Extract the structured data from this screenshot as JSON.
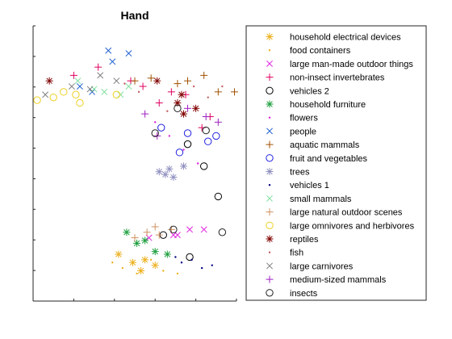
{
  "chart_data": {
    "type": "scatter",
    "title": "Hand",
    "xlabel": "",
    "ylabel": "",
    "xlim": [
      0,
      10
    ],
    "ylim": [
      0,
      10
    ],
    "legend_position": "right",
    "series": [
      {
        "name": "household electrical devices",
        "marker": "asterisk",
        "color": "#EDB120",
        "x": [
          4.2,
          4.9,
          5.5,
          5.3,
          6.0
        ],
        "y": [
          1.7,
          1.4,
          1.5,
          1.1,
          1.3
        ]
      },
      {
        "name": "food containers",
        "marker": "dot",
        "color": "#EDB120",
        "x": [
          3.9,
          4.4,
          5.1,
          5.8,
          6.4,
          7.1
        ],
        "y": [
          1.4,
          1.2,
          1.0,
          1.5,
          1.1,
          1.0
        ]
      },
      {
        "name": "large man-made outdoor things",
        "marker": "x",
        "color": "#E020E0",
        "x": [
          5.7,
          6.9,
          7.7,
          8.4,
          7.1
        ],
        "y": [
          2.3,
          2.4,
          2.6,
          2.6,
          2.4
        ]
      },
      {
        "name": "non-insect invertebrates",
        "marker": "plus",
        "color": "#E00060",
        "x": [
          2.0,
          3.2,
          4.8,
          5.4,
          6.2,
          6.8,
          7.5,
          8.3,
          8.7
        ],
        "y": [
          8.2,
          8.5,
          8.0,
          7.8,
          7.2,
          7.6,
          7.5,
          6.3,
          6.7
        ]
      },
      {
        "name": "vehicles 2",
        "marker": "circle",
        "color": "#000000",
        "x": [
          7.6,
          8.4,
          9.1,
          7.7,
          6.4
        ],
        "y": [
          5.7,
          4.9,
          3.8,
          1.6,
          2.4
        ]
      },
      {
        "name": "household furniture",
        "marker": "asterisk",
        "color": "#20A040",
        "x": [
          4.6,
          5.1,
          5.5,
          6.0,
          6.6
        ],
        "y": [
          2.5,
          2.1,
          2.2,
          1.8,
          1.7
        ]
      },
      {
        "name": "flowers",
        "marker": "dot",
        "color": "#E020E0",
        "x": [
          6.0,
          6.7,
          7.4,
          8.1,
          6.9
        ],
        "y": [
          6.5,
          6.0,
          5.5,
          5.0,
          4.5
        ]
      },
      {
        "name": "people",
        "marker": "x",
        "color": "#2060D0",
        "x": [
          2.9,
          3.7,
          3.9,
          4.7,
          2.3
        ],
        "y": [
          7.6,
          9.1,
          8.7,
          9.0,
          7.8
        ]
      },
      {
        "name": "aquatic mammals",
        "marker": "plus",
        "color": "#A05000",
        "x": [
          5.0,
          5.8,
          7.1,
          7.6,
          8.4,
          9.1,
          9.9
        ],
        "y": [
          8.0,
          8.1,
          7.9,
          8.0,
          8.2,
          7.6,
          7.6
        ]
      },
      {
        "name": "fruit and vegetables",
        "marker": "circle",
        "color": "#2020E0",
        "x": [
          6.3,
          7.6,
          8.6,
          9.0,
          7.2
        ],
        "y": [
          6.3,
          6.1,
          5.8,
          6.0,
          5.4
        ]
      },
      {
        "name": "trees",
        "marker": "asterisk",
        "color": "#9090C0",
        "x": [
          6.2,
          6.5,
          6.7,
          6.9,
          7.4
        ],
        "y": [
          4.7,
          4.6,
          4.8,
          4.5,
          4.9
        ]
      },
      {
        "name": "vehicles 1",
        "marker": "dot",
        "color": "#000080",
        "x": [
          7.0,
          7.3,
          7.8,
          8.3,
          8.8
        ],
        "y": [
          1.6,
          1.4,
          1.5,
          1.2,
          1.3
        ]
      },
      {
        "name": "small mammals",
        "marker": "x",
        "color": "#80E0A0",
        "x": [
          2.2,
          3.0,
          3.5,
          4.3,
          4.7
        ],
        "y": [
          8.0,
          7.7,
          7.6,
          7.5,
          7.8
        ]
      },
      {
        "name": "large natural outdoor scenes",
        "marker": "plus",
        "color": "#D09060",
        "x": [
          5.0,
          5.6,
          6.0,
          6.2,
          6.8
        ],
        "y": [
          2.3,
          2.5,
          2.7,
          2.4,
          2.6
        ]
      },
      {
        "name": "large omnivores and herbivores",
        "marker": "circle",
        "color": "#EDD020",
        "x": [
          0.2,
          1.0,
          1.5,
          2.1,
          4.1,
          2.3
        ],
        "y": [
          7.3,
          7.4,
          7.6,
          7.5,
          7.5,
          7.2
        ]
      },
      {
        "name": "reptiles",
        "marker": "asterisk",
        "color": "#800000",
        "x": [
          0.8,
          6.1,
          7.1,
          7.4,
          8.0,
          7.3
        ],
        "y": [
          8.0,
          8.0,
          7.2,
          6.8,
          7.0,
          7.5
        ]
      },
      {
        "name": "fish",
        "marker": "dot",
        "color": "#C06060",
        "x": [
          4.5,
          5.2,
          6.6,
          7.9,
          8.6,
          9.3
        ],
        "y": [
          7.9,
          7.6,
          6.9,
          7.8,
          7.4,
          7.8
        ]
      },
      {
        "name": "large carnivores",
        "marker": "x",
        "color": "#808080",
        "x": [
          0.6,
          1.9,
          2.8,
          3.3,
          4.1
        ],
        "y": [
          7.5,
          7.8,
          7.7,
          8.2,
          8.0
        ]
      },
      {
        "name": "medium-sized mammals",
        "marker": "plus",
        "color": "#A020C0",
        "x": [
          7.6,
          8.5,
          9.1,
          6.1,
          5.5
        ],
        "y": [
          7.0,
          6.7,
          6.5,
          6.0,
          6.8
        ]
      },
      {
        "name": "insects",
        "marker": "circle",
        "color": "#202020",
        "x": [
          6.0,
          7.1,
          8.5,
          9.3,
          6.9
        ],
        "y": [
          6.1,
          7.0,
          6.2,
          2.5,
          2.6
        ]
      }
    ]
  }
}
